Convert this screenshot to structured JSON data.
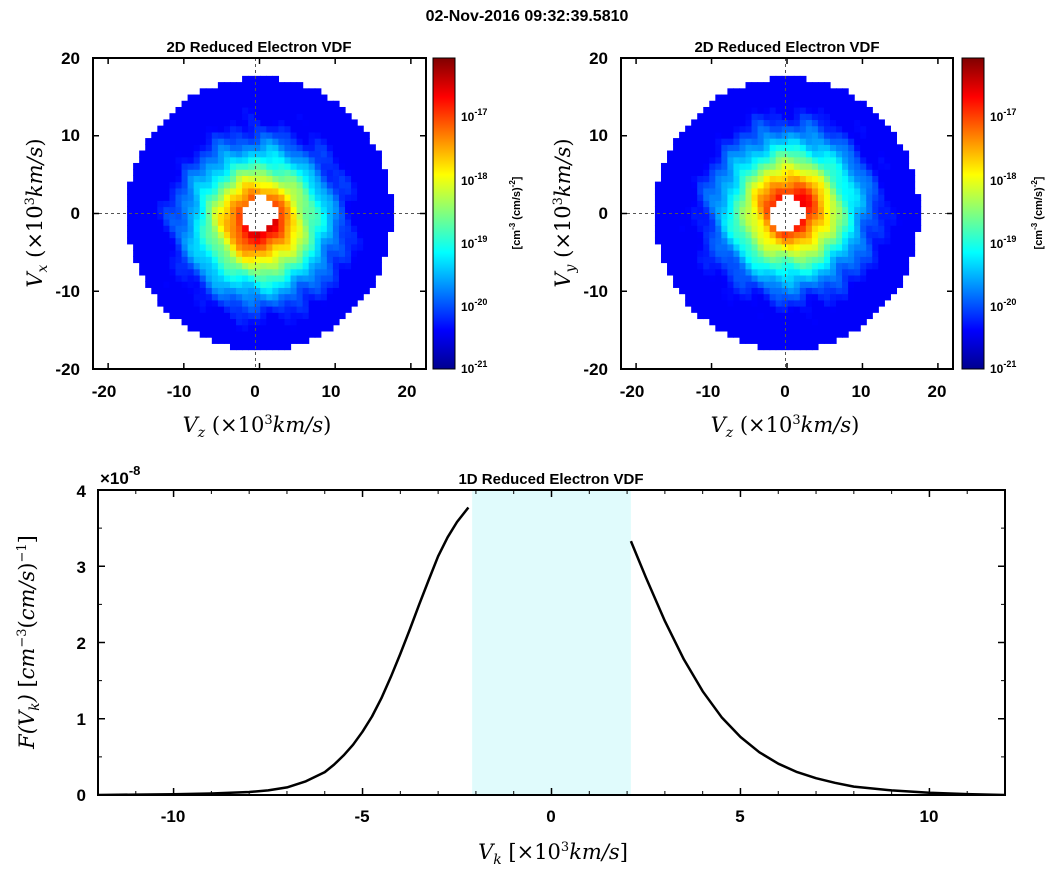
{
  "figure_title": "02-Nov-2016 09:32:39.5810",
  "chart_data": [
    {
      "type": "heatmap",
      "title": "2D Reduced Electron VDF",
      "xlabel": "V_z (×10^3 km/s)",
      "ylabel": "V_x (×10^3 km/s)",
      "xlim": [
        -22,
        22
      ],
      "ylim": [
        -20,
        20
      ],
      "xticks": [
        -20,
        -10,
        0,
        10,
        20
      ],
      "yticks": [
        -20,
        -10,
        0,
        10,
        20
      ],
      "disk_radius": 17.5,
      "hole_radius": 2.2,
      "peak_center": [
        0,
        -1
      ],
      "colorbar": {
        "label": "[cm^-3 (cm/s)^-2]",
        "scale": "log",
        "range": [
          1e-21,
          1e-16
        ],
        "ticks": [
          "10^-21",
          "10^-20",
          "10^-19",
          "10^-18",
          "10^-17"
        ]
      },
      "grid": "dashed crosshair at 0"
    },
    {
      "type": "heatmap",
      "title": "2D Reduced Electron VDF",
      "xlabel": "V_z (×10^3 km/s)",
      "ylabel": "V_y (×10^3 km/s)",
      "xlim": [
        -22,
        22
      ],
      "ylim": [
        -20,
        20
      ],
      "xticks": [
        -20,
        -10,
        0,
        10,
        20
      ],
      "yticks": [
        -20,
        -10,
        0,
        10,
        20
      ],
      "disk_radius": 17.5,
      "hole_radius": 2.2,
      "peak_center": [
        0.5,
        0.5
      ],
      "colorbar": {
        "label": "[cm^-3 (cm/s)^-2]",
        "scale": "log",
        "range": [
          1e-21,
          1e-16
        ],
        "ticks": [
          "10^-21",
          "10^-20",
          "10^-19",
          "10^-18",
          "10^-17"
        ]
      },
      "grid": "dashed crosshair at 0"
    },
    {
      "type": "line",
      "title": "1D Reduced Electron VDF",
      "xlabel": "V_k [×10^3 km/s]",
      "ylabel": "F(V_k) [cm^-3 (cm/s)^-1]",
      "xlim": [
        -12,
        12
      ],
      "ylim": [
        0,
        4
      ],
      "y_multiplier": "×10^-8",
      "xticks": [
        -10,
        -5,
        0,
        5,
        10
      ],
      "yticks": [
        0,
        1,
        2,
        3,
        4
      ],
      "shaded_region": {
        "x": [
          -2.1,
          2.1
        ],
        "color": "#e0fbfc"
      },
      "series": [
        {
          "color": "#000000",
          "segments": [
            {
              "x": [
                -12,
                -11,
                -10,
                -9,
                -8,
                -7.5,
                -7,
                -6.5,
                -6,
                -5.75,
                -5.5,
                -5.25,
                -5,
                -4.75,
                -4.5,
                -4.25,
                -4,
                -3.75,
                -3.5,
                -3.25,
                -3,
                -2.75,
                -2.5,
                -2.2
              ],
              "y": [
                0.0,
                0.005,
                0.01,
                0.02,
                0.04,
                0.06,
                0.1,
                0.18,
                0.3,
                0.4,
                0.52,
                0.66,
                0.83,
                1.03,
                1.27,
                1.55,
                1.85,
                2.17,
                2.5,
                2.82,
                3.13,
                3.38,
                3.58,
                3.77
              ]
            },
            {
              "x": [
                2.1,
                2.5,
                3,
                3.5,
                4,
                4.5,
                5,
                5.5,
                6,
                6.5,
                7,
                7.5,
                8,
                9,
                10,
                11,
                12
              ],
              "y": [
                3.33,
                2.85,
                2.28,
                1.78,
                1.36,
                1.02,
                0.76,
                0.56,
                0.41,
                0.3,
                0.22,
                0.16,
                0.11,
                0.06,
                0.03,
                0.012,
                0.0
              ]
            }
          ]
        }
      ]
    }
  ]
}
